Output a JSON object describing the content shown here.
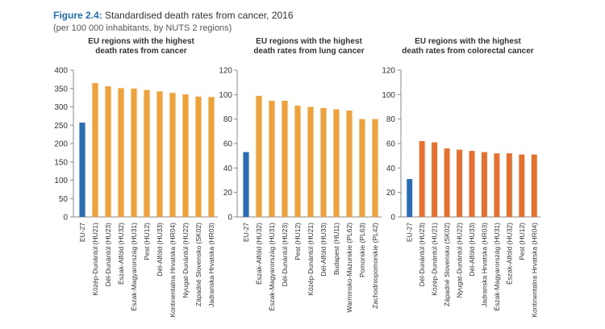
{
  "figure": {
    "number": "Figure 2.4:",
    "title": "Standardised death rates from cancer, 2016",
    "subtitle": "(per 100 000 inhabitants, by NUTS 2 regions)"
  },
  "colors": {
    "eu_bar": "#2a6db5",
    "lung_bar": "#f1a63a",
    "colorectal_bar": "#e8702f",
    "text": "#333333",
    "axis": "#888888"
  },
  "chart_data": [
    {
      "type": "bar",
      "title": "EU regions with the highest death rates from cancer",
      "title_lines": [
        "EU regions with the highest",
        "death rates from cancer"
      ],
      "categories": [
        "EU-27",
        "Közép-Dunántúl (HU21)",
        "Dél-Dunántúl (HU23)",
        "Észak-Alföld (HU32)",
        "Észak-Magyarország (HU31)",
        "Pest (HU12)",
        "Dél-Alföld (HU33)",
        "Kontinentalna Hrvatska (HR04)",
        "Nyugat-Dunántúl (HU22)",
        "Západné Slovensko (SK02)",
        "Jadranska Hrvatska (HR03)"
      ],
      "values": [
        257,
        365,
        356,
        351,
        350,
        346,
        342,
        338,
        334,
        328,
        327
      ],
      "ylim": [
        0,
        400
      ],
      "yticks": [
        0,
        50,
        100,
        150,
        200,
        250,
        300,
        350,
        400
      ],
      "bar_color": "#f0a23a",
      "highlight_first_color": "#2a6db5",
      "grid": false
    },
    {
      "type": "bar",
      "title": "EU regions with the highest death rates from lung cancer",
      "title_lines": [
        "EU regions with the highest",
        "death rates from lung cancer"
      ],
      "categories": [
        "EU-27",
        "Észak-Alföld (HU32)",
        "Észak-Magyarország (HU31)",
        "Dél-Dunántúl (HU23)",
        "Pest (HU12)",
        "Közép-Dunántúl (HU21)",
        "Dél-Alföld (HU33)",
        "Budapest (HU11)",
        "Warminsko-Mazurskie (PL62)",
        "Pomorskie (PL63)",
        "Zachodniopomorskie (PL42)"
      ],
      "values": [
        53,
        99,
        95,
        95,
        91,
        90,
        89,
        88,
        87,
        80,
        80
      ],
      "ylim": [
        0,
        120
      ],
      "yticks": [
        0,
        20,
        40,
        60,
        80,
        100,
        120
      ],
      "bar_color": "#f0a23a",
      "highlight_first_color": "#2a6db5",
      "grid": false
    },
    {
      "type": "bar",
      "title": "EU regions with the highest death rates from colorectal cancer",
      "title_lines": [
        "EU regions with the highest",
        "death rates from colorectal cancer"
      ],
      "categories": [
        "EU-27",
        "Dél-Dunántúl (HU23)",
        "Közép-Dunántúl (HU21)",
        "Západné Slovensko (SK02)",
        "Nyugat-Dunántúl (HU22)",
        "Dél-Alföld (HU33)",
        "Jadranska Hrvatska (HR03)",
        "Észak-Magyarország (HU31)",
        "Észak-Alföld (HU32)",
        "Pest (HU12)",
        "Kontinentalna Hrvatska (HR04)"
      ],
      "values": [
        31,
        62,
        61,
        56,
        55,
        54,
        53,
        52,
        52,
        51,
        51
      ],
      "ylim": [
        0,
        120
      ],
      "yticks": [
        0,
        20,
        40,
        60,
        80,
        100,
        120
      ],
      "bar_color": "#e8702f",
      "highlight_first_color": "#2a6db5",
      "grid": false
    }
  ]
}
